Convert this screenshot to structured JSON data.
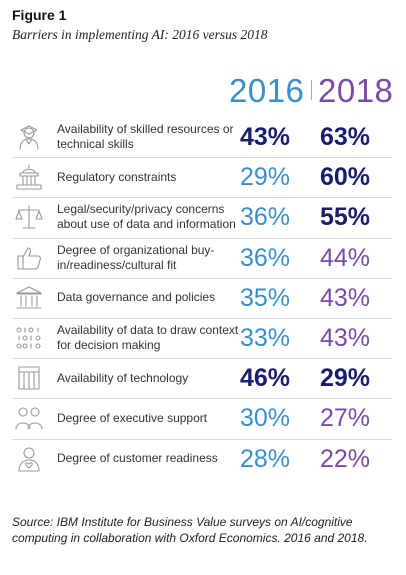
{
  "figure": {
    "label": "Figure 1",
    "title": "Barriers in implementing AI: 2016 versus 2018"
  },
  "headers": {
    "y2016": "2016",
    "y2018": "2018"
  },
  "colors": {
    "y2016": "#3a8fc9",
    "y2018": "#7b4aa6",
    "highlight": "#1a1d6b",
    "icon": "#999999"
  },
  "rows": [
    {
      "label": "Availability of skilled resources or technical skills",
      "v2016": "43%",
      "v2018": "63%",
      "hl2016": true,
      "hl2018": true,
      "icon": "graduate-icon"
    },
    {
      "label": "Regulatory constraints",
      "v2016": "29%",
      "v2018": "60%",
      "hl2016": false,
      "hl2018": true,
      "icon": "capitol-building-icon"
    },
    {
      "label": "Legal/security/privacy concerns about use of data and information",
      "v2016": "36%",
      "v2018": "55%",
      "hl2016": false,
      "hl2018": true,
      "icon": "scales-icon"
    },
    {
      "label": "Degree of organizational buy-in/readiness/cultural fit",
      "v2016": "36%",
      "v2018": "44%",
      "hl2016": false,
      "hl2018": false,
      "icon": "thumbs-up-icon"
    },
    {
      "label": "Data governance and policies",
      "v2016": "35%",
      "v2018": "43%",
      "hl2016": false,
      "hl2018": false,
      "icon": "institution-icon"
    },
    {
      "label": "Availability of data to draw context for decision making",
      "v2016": "33%",
      "v2018": "43%",
      "hl2016": false,
      "hl2018": false,
      "icon": "binary-data-icon"
    },
    {
      "label": "Availability of technology",
      "v2016": "46%",
      "v2018": "29%",
      "hl2016": true,
      "hl2018": true,
      "icon": "server-rack-icon"
    },
    {
      "label": "Degree of executive support",
      "v2016": "30%",
      "v2018": "27%",
      "hl2016": false,
      "hl2018": false,
      "icon": "people-group-icon"
    },
    {
      "label": "Degree of customer readiness",
      "v2016": "28%",
      "v2018": "22%",
      "hl2016": false,
      "hl2018": false,
      "icon": "customer-heart-icon"
    }
  ],
  "source": "Source: IBM Institute for Business Value surveys on AI/cognitive computing in collaboration with Oxford Economics. 2016 and 2018.",
  "chart_data": {
    "type": "table",
    "title": "Barriers in implementing AI: 2016 versus 2018",
    "columns": [
      "2016",
      "2018"
    ],
    "categories": [
      "Availability of skilled resources or technical skills",
      "Regulatory constraints",
      "Legal/security/privacy concerns about use of data and information",
      "Degree of organizational buy-in/readiness/cultural fit",
      "Data governance and policies",
      "Availability of data to draw context for decision making",
      "Availability of technology",
      "Degree of executive support",
      "Degree of customer readiness"
    ],
    "series": [
      {
        "name": "2016",
        "values": [
          43,
          29,
          36,
          36,
          35,
          33,
          46,
          30,
          28
        ]
      },
      {
        "name": "2018",
        "values": [
          63,
          60,
          55,
          44,
          43,
          43,
          29,
          27,
          22
        ]
      }
    ]
  }
}
